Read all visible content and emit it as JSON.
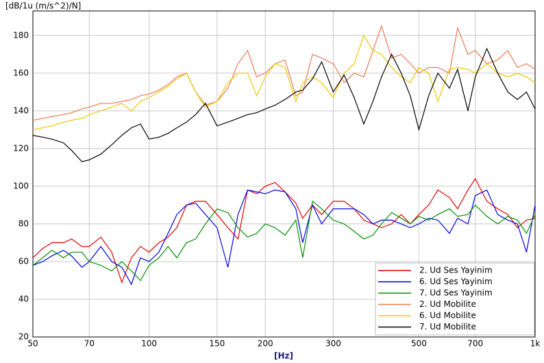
{
  "chart_data": {
    "type": "line",
    "y_label": "[dB/1u (m/s^2)/N]",
    "x_label": "[Hz]",
    "x_scale": "log",
    "grid": true,
    "legend": "lower right",
    "x": [
      50,
      53,
      56,
      60,
      63,
      67,
      70,
      75,
      80,
      85,
      90,
      95,
      100,
      106,
      112,
      118,
      125,
      132,
      140,
      150,
      160,
      170,
      180,
      190,
      200,
      212,
      225,
      240,
      250,
      265,
      280,
      300,
      320,
      340,
      360,
      380,
      400,
      425,
      450,
      475,
      500,
      530,
      560,
      600,
      630,
      670,
      700,
      750,
      800,
      850,
      900,
      950,
      1000
    ],
    "xlim": [
      50,
      1000
    ],
    "xticks": [
      50,
      70,
      100,
      150,
      200,
      300,
      500,
      700,
      {
        "value": 1000,
        "label": "1k"
      }
    ],
    "ylim": [
      20,
      193
    ],
    "yticks": [
      20,
      40,
      60,
      80,
      100,
      120,
      140,
      160,
      180
    ],
    "series": [
      {
        "name": "2. Ud Ses Yayinim",
        "color": "#e00000",
        "values": [
          62,
          67,
          70,
          70,
          72,
          68,
          68,
          73,
          65,
          49,
          62,
          68,
          65,
          70,
          73,
          78,
          90,
          92,
          92,
          85,
          78,
          72,
          98,
          96,
          100,
          102,
          97,
          91,
          83,
          90,
          85,
          92,
          92,
          88,
          82,
          80,
          78,
          80,
          85,
          80,
          85,
          90,
          98,
          94,
          88,
          98,
          104,
          92,
          88,
          85,
          78,
          82,
          83
        ]
      },
      {
        "name": "6. Ud Ses Yayinim",
        "color": "#0000e0",
        "values": [
          58,
          60,
          63,
          66,
          63,
          57,
          60,
          68,
          60,
          57,
          48,
          62,
          60,
          65,
          75,
          85,
          90,
          91,
          85,
          78,
          57,
          85,
          98,
          97,
          96,
          98,
          97,
          88,
          70,
          90,
          80,
          88,
          88,
          88,
          85,
          80,
          82,
          82,
          80,
          78,
          80,
          83,
          82,
          75,
          83,
          80,
          95,
          98,
          85,
          82,
          80,
          65,
          90
        ]
      },
      {
        "name": "7. Ud Ses Yayinim",
        "color": "#009000",
        "values": [
          58,
          62,
          66,
          62,
          65,
          65,
          60,
          58,
          55,
          60,
          55,
          50,
          58,
          62,
          68,
          62,
          70,
          72,
          80,
          88,
          86,
          78,
          73,
          75,
          80,
          78,
          74,
          82,
          62,
          92,
          88,
          82,
          80,
          76,
          72,
          74,
          80,
          86,
          83,
          80,
          84,
          82,
          85,
          88,
          84,
          85,
          90,
          84,
          80,
          84,
          82,
          75,
          85
        ]
      },
      {
        "name": "2. Ud Mobilite",
        "color": "#f07850",
        "values": [
          135,
          136,
          137,
          138,
          139,
          141,
          142,
          144,
          144,
          145,
          146,
          148,
          149,
          151,
          154,
          158,
          160,
          150,
          143,
          145,
          152,
          165,
          172,
          158,
          160,
          165,
          167,
          148,
          150,
          170,
          168,
          165,
          155,
          160,
          158,
          172,
          185,
          168,
          170,
          165,
          160,
          163,
          163,
          160,
          184,
          170,
          172,
          165,
          167,
          172,
          163,
          165,
          162
        ]
      },
      {
        "name": "6. Ud Mobilite",
        "color": "#f0c800",
        "values": [
          130,
          131,
          132,
          134,
          135,
          136,
          138,
          140,
          142,
          144,
          140,
          145,
          147,
          150,
          153,
          157,
          160,
          150,
          142,
          145,
          155,
          160,
          160,
          148,
          158,
          165,
          163,
          145,
          155,
          158,
          155,
          147,
          160,
          165,
          180,
          172,
          170,
          163,
          158,
          155,
          163,
          160,
          145,
          162,
          163,
          162,
          160,
          165,
          160,
          158,
          160,
          158,
          155
        ]
      },
      {
        "name": "7. Ud Mobilite",
        "color": "#000000",
        "values": [
          127,
          126,
          125,
          123,
          119,
          113,
          114,
          117,
          122,
          127,
          131,
          133,
          125,
          126,
          128,
          131,
          134,
          138,
          144,
          132,
          134,
          136,
          138,
          139,
          141,
          143,
          146,
          150,
          151,
          157,
          166,
          150,
          159,
          147,
          133,
          145,
          158,
          170,
          160,
          148,
          130,
          148,
          160,
          152,
          162,
          140,
          158,
          173,
          160,
          150,
          146,
          150,
          141
        ]
      }
    ]
  }
}
